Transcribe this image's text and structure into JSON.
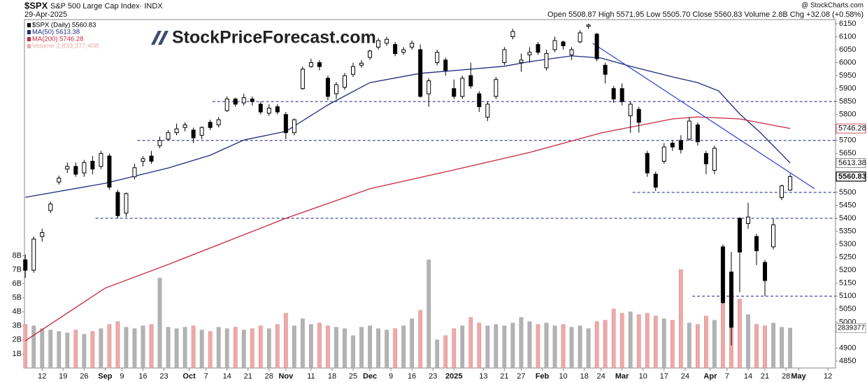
{
  "chart_data": {
    "type": "candlestick",
    "symbol": "$SPX",
    "title": "S&P 500 Large Cap Index· INDX",
    "date": "29-Apr-2025",
    "source": "@ StockCharts.com",
    "quote": "Open 5508.87   High 5571.95   Low 5505.70   Close 5560.83   Volume 2.8B   Chg +32.08 (+0.58%)",
    "logo": "StockPriceForecast.com",
    "candle_name": "$SPX (Daily) 5560.83",
    "volume_name": "Volume 2,839,377,408",
    "volume_marker": "2839377",
    "xlim": [
      -4.2,
      188.8
    ],
    "ylim": [
      4823,
      6166
    ],
    "volume_ylim": [
      0,
      24.8
    ],
    "xticks": [
      {
        "value": 0,
        "label": "12"
      },
      {
        "value": 5,
        "label": "19"
      },
      {
        "value": 10,
        "label": "26"
      },
      {
        "value": 15,
        "label": "Sep"
      },
      {
        "value": 19,
        "label": "9"
      },
      {
        "value": 24,
        "label": "16"
      },
      {
        "value": 29,
        "label": "23"
      },
      {
        "value": 35,
        "label": "Oct"
      },
      {
        "value": 39,
        "label": "7"
      },
      {
        "value": 44,
        "label": "14"
      },
      {
        "value": 49,
        "label": "21"
      },
      {
        "value": 54,
        "label": "28"
      },
      {
        "value": 58,
        "label": "Nov"
      },
      {
        "value": 64,
        "label": "11"
      },
      {
        "value": 69,
        "label": "18"
      },
      {
        "value": 74,
        "label": "25"
      },
      {
        "value": 78,
        "label": "Dec"
      },
      {
        "value": 83,
        "label": "9"
      },
      {
        "value": 88,
        "label": "16"
      },
      {
        "value": 93,
        "label": "23"
      },
      {
        "value": 98,
        "label": "2025"
      },
      {
        "value": 105,
        "label": "13"
      },
      {
        "value": 110,
        "label": "21"
      },
      {
        "value": 114,
        "label": "27"
      },
      {
        "value": 119,
        "label": "Feb"
      },
      {
        "value": 124,
        "label": "10"
      },
      {
        "value": 129,
        "label": "18"
      },
      {
        "value": 133,
        "label": "24"
      },
      {
        "value": 138,
        "label": "Mar"
      },
      {
        "value": 143,
        "label": "10"
      },
      {
        "value": 148,
        "label": "17"
      },
      {
        "value": 153,
        "label": "24"
      },
      {
        "value": 159,
        "label": "Apr"
      },
      {
        "value": 163,
        "label": "7"
      },
      {
        "value": 168,
        "label": "14"
      },
      {
        "value": 172,
        "label": "21"
      },
      {
        "value": 177,
        "label": "28"
      },
      {
        "value": 180,
        "label": "May"
      },
      {
        "value": 187,
        "label": "12"
      }
    ],
    "yticks": [
      6150,
      6100,
      6050,
      6000,
      5950,
      5900,
      5850,
      5800,
      5700,
      5650,
      5500,
      5450,
      5400,
      5350,
      5300,
      5250,
      5200,
      5150,
      5100,
      5050,
      5000,
      4900,
      4850
    ],
    "volume_ticks": [
      {
        "value": 1,
        "label": "1B"
      },
      {
        "value": 2,
        "label": "2B"
      },
      {
        "value": 3,
        "label": "3B"
      },
      {
        "value": 4,
        "label": "4B"
      },
      {
        "value": 5,
        "label": "5B"
      },
      {
        "value": 6,
        "label": "6B"
      },
      {
        "value": 7,
        "label": "7B"
      },
      {
        "value": 8,
        "label": "8B"
      }
    ],
    "x": [
      -4,
      -2,
      0,
      2,
      4,
      6,
      8,
      10,
      12,
      14,
      16,
      18,
      20,
      22,
      24,
      26,
      28,
      30,
      32,
      34,
      36,
      38,
      40,
      42,
      44,
      46,
      48,
      50,
      52,
      54,
      56,
      58,
      60,
      62,
      64,
      66,
      68,
      70,
      72,
      74,
      76,
      78,
      80,
      82,
      84,
      86,
      88,
      90,
      92,
      94,
      96,
      98,
      100,
      102,
      104,
      106,
      108,
      110,
      112,
      114,
      116,
      118,
      120,
      122,
      124,
      126,
      128,
      130,
      132,
      134,
      136,
      138,
      140,
      142,
      144,
      146,
      148,
      150,
      152,
      154,
      156,
      158,
      160,
      162,
      164,
      166,
      168,
      170,
      172,
      174,
      176,
      178
    ],
    "open": [
      5240,
      5200,
      5330,
      5430,
      5540,
      5590,
      5600,
      5575,
      5620,
      5600,
      5640,
      5500,
      5420,
      5560,
      5620,
      5640,
      5680,
      5705,
      5730,
      5750,
      5740,
      5720,
      5770,
      5760,
      5815,
      5860,
      5845,
      5860,
      5840,
      5805,
      5830,
      5800,
      5730,
      5900,
      5985,
      6000,
      5940,
      5880,
      5905,
      5955,
      5990,
      6020,
      6060,
      6075,
      6070,
      6040,
      6060,
      6050,
      5880,
      6000,
      6010,
      5900,
      5870,
      5950,
      5880,
      5790,
      5870,
      6000,
      6100,
      6000,
      6030,
      6070,
      5980,
      6050,
      6080,
      6030,
      6080,
      6140,
      6110,
      5990,
      5900,
      5900,
      5795,
      5820,
      5650,
      5570,
      5620,
      5690,
      5700,
      5705,
      5760,
      5650,
      5585,
      5290,
      5193,
      5400,
      5380,
      5330,
      5230,
      5290,
      5480,
      5508.87
    ],
    "high": [
      5260,
      5330,
      5360,
      5465,
      5565,
      5615,
      5615,
      5625,
      5640,
      5660,
      5650,
      5510,
      5500,
      5610,
      5640,
      5660,
      5715,
      5740,
      5765,
      5770,
      5750,
      5755,
      5780,
      5790,
      5870,
      5865,
      5880,
      5870,
      5850,
      5840,
      5840,
      5810,
      5785,
      5985,
      6015,
      6010,
      5950,
      5925,
      5960,
      6000,
      6010,
      6050,
      6095,
      6100,
      6080,
      6060,
      6085,
      6070,
      5940,
      6050,
      6020,
      5935,
      5950,
      6000,
      5890,
      5850,
      5945,
      6060,
      6130,
      6035,
      6060,
      6080,
      6050,
      6100,
      6085,
      6060,
      6125,
      6150,
      6115,
      6000,
      5910,
      5920,
      5850,
      5830,
      5660,
      5580,
      5690,
      5700,
      5720,
      5790,
      5770,
      5660,
      5680,
      5300,
      5270,
      5405,
      5460,
      5340,
      5240,
      5400,
      5530,
      5571.95
    ],
    "low": [
      5170,
      5190,
      5310,
      5420,
      5530,
      5575,
      5560,
      5560,
      5570,
      5590,
      5510,
      5400,
      5405,
      5550,
      5600,
      5610,
      5670,
      5700,
      5720,
      5735,
      5690,
      5705,
      5740,
      5750,
      5810,
      5830,
      5835,
      5835,
      5800,
      5795,
      5800,
      5705,
      5720,
      5895,
      5980,
      5970,
      5855,
      5860,
      5895,
      5945,
      5980,
      6010,
      6050,
      6065,
      6025,
      6030,
      6050,
      5865,
      5830,
      5990,
      5950,
      5860,
      5860,
      5900,
      5810,
      5775,
      5860,
      5990,
      6090,
      5965,
      6000,
      6030,
      5970,
      6040,
      6050,
      6010,
      6075,
      6130,
      6005,
      5920,
      5845,
      5835,
      5730,
      5730,
      5560,
      5505,
      5610,
      5660,
      5650,
      5700,
      5680,
      5570,
      5570,
      5070,
      4910,
      5115,
      5360,
      5220,
      5100,
      5280,
      5470,
      5505.7
    ],
    "close": [
      5200,
      5320,
      5345,
      5455,
      5555,
      5600,
      5570,
      5615,
      5590,
      5650,
      5520,
      5410,
      5495,
      5595,
      5630,
      5620,
      5700,
      5730,
      5745,
      5760,
      5710,
      5750,
      5750,
      5780,
      5860,
      5840,
      5865,
      5850,
      5810,
      5825,
      5810,
      5730,
      5780,
      5975,
      6000,
      5985,
      5870,
      5915,
      5950,
      5985,
      5998,
      6045,
      6085,
      6090,
      6035,
      6050,
      6075,
      5870,
      5930,
      6040,
      5970,
      5870,
      5940,
      5910,
      5830,
      5840,
      5935,
      6050,
      6120,
      6010,
      6040,
      6040,
      6035,
      6085,
      6065,
      6050,
      6115,
      6145,
      6015,
      5955,
      5860,
      5850,
      5840,
      5770,
      5575,
      5520,
      5675,
      5675,
      5665,
      5775,
      5695,
      5610,
      5670,
      5075,
      4980,
      5270,
      5405,
      5275,
      5160,
      5375,
      5525,
      5560.83
    ],
    "volume": [
      3.1,
      3.0,
      2.8,
      2.7,
      2.6,
      2.5,
      2.7,
      2.4,
      2.6,
      2.8,
      3.1,
      3.3,
      2.9,
      2.8,
      3.0,
      3.1,
      6.4,
      2.9,
      2.8,
      2.9,
      3.0,
      2.7,
      2.6,
      2.9,
      2.8,
      2.9,
      2.7,
      2.8,
      3.0,
      2.8,
      3.1,
      3.9,
      3.0,
      3.5,
      3.1,
      3.2,
      3.0,
      2.9,
      2.8,
      2.3,
      2.9,
      3.0,
      2.8,
      2.7,
      2.8,
      3.0,
      3.5,
      4.1,
      7.7,
      2.0,
      2.3,
      2.8,
      3.0,
      3.6,
      3.2,
      3.0,
      3.1,
      3.0,
      3.2,
      3.6,
      3.3,
      3.1,
      3.2,
      3.0,
      3.1,
      2.9,
      3.0,
      2.8,
      3.3,
      3.4,
      4.2,
      3.9,
      4.0,
      3.8,
      3.9,
      3.7,
      3.5,
      3.4,
      7.0,
      3.2,
      3.1,
      3.7,
      3.4,
      5.4,
      5.2,
      4.9,
      3.8,
      3.1,
      3.0,
      3.2,
      2.9,
      2.84
    ],
    "up_color": "#ffffff",
    "down_color": "#000000",
    "volume_up_color": "#b3b3b3",
    "volume_down_color": "#eeaaaa",
    "ma": [
      {
        "name": "MA(50) 5613.38",
        "color": "#1f2a80",
        "x": [
          -4,
          15,
          30,
          40,
          48,
          58,
          68,
          78,
          90,
          100,
          110,
          116,
          126,
          133,
          140,
          150,
          156,
          161,
          166,
          171,
          178
        ],
        "values": [
          5481,
          5535,
          5594,
          5643,
          5702,
          5735,
          5837,
          5923,
          5959,
          5972,
          5986,
          6004,
          6026,
          6018,
          5986,
          5945,
          5923,
          5891,
          5802,
          5729,
          5613.38
        ]
      },
      {
        "name": "MA(200) 5746.28",
        "color": "#c62840",
        "x": [
          -4,
          15,
          30,
          58,
          78,
          100,
          116,
          133,
          150,
          156,
          166,
          178
        ],
        "values": [
          4928,
          5131,
          5222,
          5400,
          5514,
          5594,
          5654,
          5729,
          5783,
          5791,
          5783,
          5746.28
        ]
      }
    ],
    "levels": [
      {
        "value": 5850,
        "start": 40.5
      },
      {
        "value": 5700,
        "start": 22.7
      },
      {
        "value": 5500,
        "start": 140.5
      },
      {
        "value": 5400,
        "start": 12.7
      },
      {
        "value": 5100,
        "start": 154.7
      }
    ],
    "level_color": "#1a237e",
    "trendline": {
      "x": [
        131,
        183.8
      ],
      "values": [
        6075,
        5514
      ],
      "color": "#2b3fd6"
    },
    "markers": [
      {
        "value": 5746.28,
        "color": "#c62840"
      },
      {
        "value": 5613.38,
        "color": "#777777"
      },
      {
        "value": 5560.83,
        "color": "#000000"
      }
    ]
  }
}
